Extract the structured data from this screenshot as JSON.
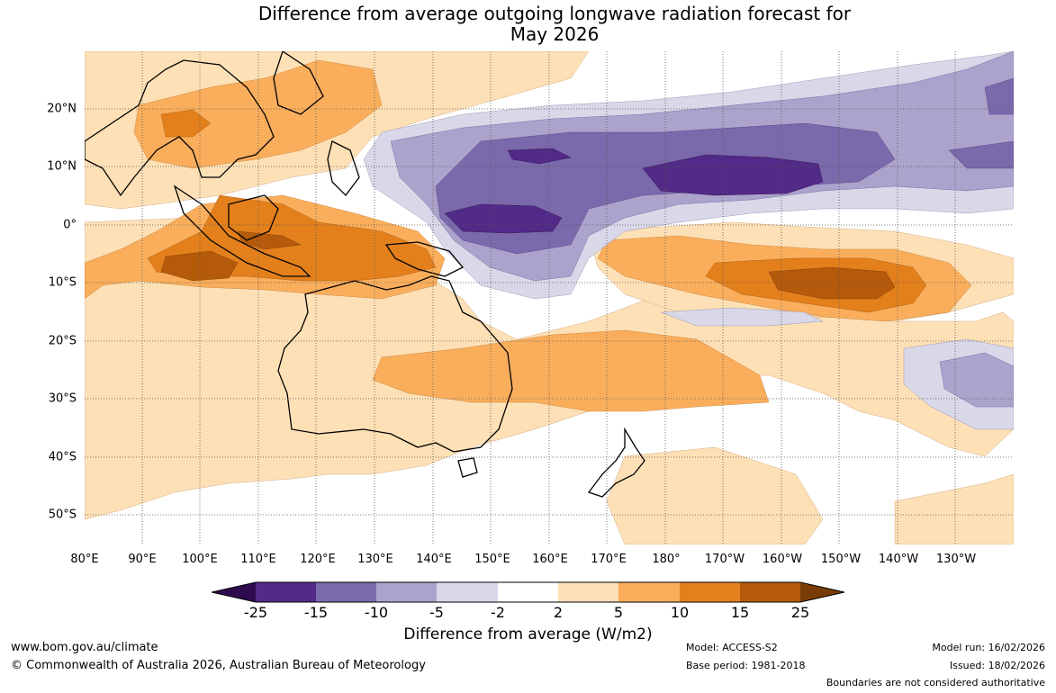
{
  "title_line1": "Difference from average outgoing longwave radiation forecast for",
  "title_line2": "May 2026",
  "axes": {
    "lat_labels": [
      "20°N",
      "10°N",
      "0°",
      "10°S",
      "20°S",
      "30°S",
      "40°S",
      "50°S"
    ],
    "lon_labels": [
      "80°E",
      "90°E",
      "100°E",
      "110°E",
      "120°E",
      "130°E",
      "140°E",
      "150°E",
      "160°E",
      "170°E",
      "180°",
      "170°W",
      "160°W",
      "150°W",
      "140°W",
      "130°W"
    ]
  },
  "colorbar": {
    "ticks": [
      "-25",
      "-15",
      "-10",
      "-5",
      "-2",
      "2",
      "5",
      "10",
      "15",
      "25"
    ],
    "label": "Difference from average (W/m2)",
    "colors": [
      "#2e0a4e",
      "#522a87",
      "#7a6aab",
      "#aca3cc",
      "#d9d8e9",
      "#ffffff",
      "#fde0b6",
      "#faae5c",
      "#e3801c",
      "#b55a0b",
      "#7a3c06"
    ]
  },
  "footer": {
    "website": "www.bom.gov.au/climate",
    "copyright": "© Commonwealth of Australia 2026, Australian Bureau of Meteorology",
    "model": "Model: ACCESS-S2",
    "base_period": "Base period: 1981-2018",
    "model_run": "Model run: 16/02/2026",
    "issued": "Issued: 18/02/2026",
    "disclaimer": "Boundaries are not considered authoritative"
  }
}
